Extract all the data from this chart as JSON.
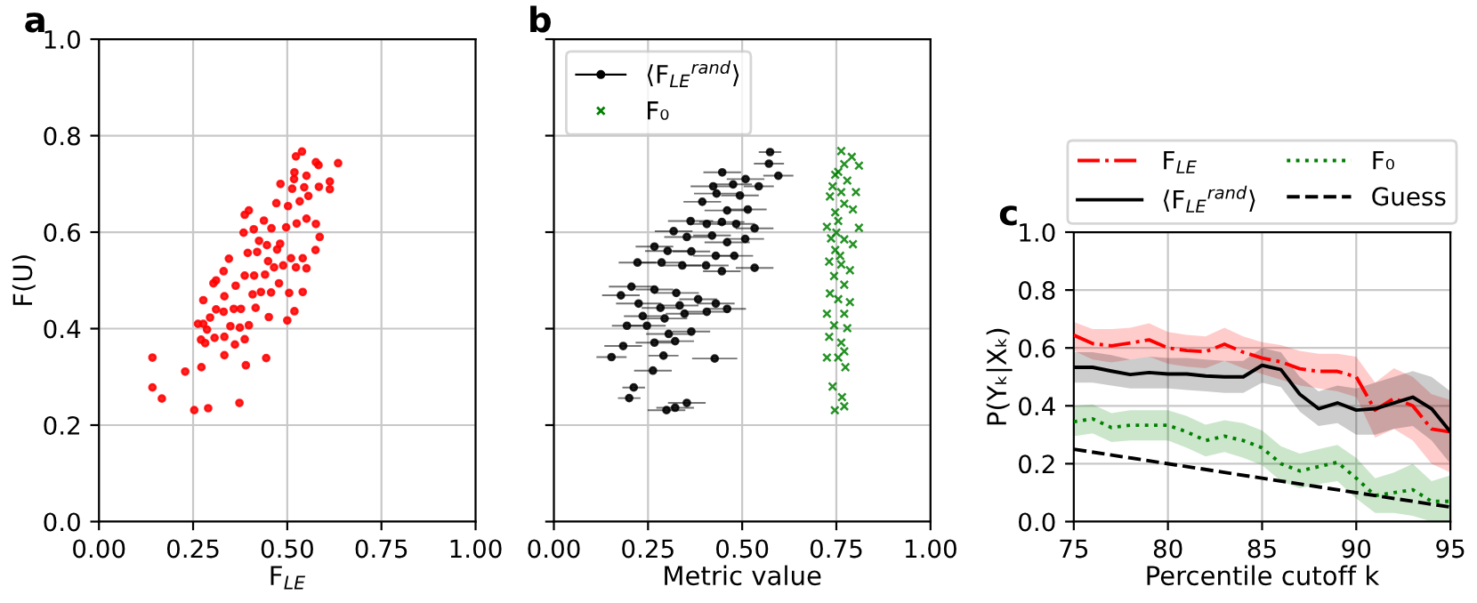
{
  "chart_data": [
    {
      "type": "scatter",
      "title": "a",
      "xlabel": "F$_{LE}$",
      "ylabel": "F(U)",
      "xlim": [
        0,
        1
      ],
      "ylim": [
        0,
        1
      ],
      "xticks": [
        {
          "value": 0,
          "label": "0.00"
        },
        {
          "value": 0.25,
          "label": "0.25"
        },
        {
          "value": 0.5,
          "label": "0.50"
        },
        {
          "value": 0.75,
          "label": "0.75"
        },
        {
          "value": 1,
          "label": "1.00"
        }
      ],
      "yticks": [
        {
          "value": 0,
          "label": "0.0"
        },
        {
          "value": 0.2,
          "label": "0.2"
        },
        {
          "value": 0.4,
          "label": "0.4"
        },
        {
          "value": 0.6,
          "label": "0.6"
        },
        {
          "value": 0.8,
          "label": "0.8"
        },
        {
          "value": 1,
          "label": "1.0"
        }
      ],
      "grid": true,
      "marker": "circle",
      "series": [
        {
          "color": "#ff0000",
          "x": [
            0.142,
            0.142,
            0.167,
            0.253,
            0.29,
            0.373,
            0.229,
            0.272,
            0.39,
            0.444,
            0.333,
            0.271,
            0.282,
            0.307,
            0.361,
            0.387,
            0.333,
            0.287,
            0.263,
            0.277,
            0.349,
            0.374,
            0.398,
            0.295,
            0.311,
            0.331,
            0.358,
            0.377,
            0.416,
            0.451,
            0.5,
            0.519,
            0.277,
            0.333,
            0.363,
            0.304,
            0.311,
            0.331,
            0.345,
            0.408,
            0.43,
            0.457,
            0.478,
            0.505,
            0.541,
            0.387,
            0.412,
            0.441,
            0.465,
            0.489,
            0.523,
            0.551,
            0.395,
            0.42,
            0.446,
            0.473,
            0.51,
            0.541,
            0.575,
            0.586,
            0.384,
            0.411,
            0.438,
            0.458,
            0.497,
            0.525,
            0.551,
            0.576,
            0.387,
            0.398,
            0.471,
            0.502,
            0.533,
            0.556,
            0.584,
            0.613,
            0.613,
            0.482,
            0.513,
            0.545,
            0.518,
            0.551,
            0.519,
            0.576,
            0.583,
            0.635,
            0.523,
            0.539,
            0.425,
            0.481,
            0.449
          ],
          "values": [
            0.34,
            0.278,
            0.255,
            0.231,
            0.235,
            0.246,
            0.311,
            0.32,
            0.324,
            0.339,
            0.345,
            0.377,
            0.37,
            0.381,
            0.367,
            0.378,
            0.383,
            0.398,
            0.41,
            0.41,
            0.405,
            0.402,
            0.407,
            0.423,
            0.44,
            0.435,
            0.441,
            0.441,
            0.443,
            0.424,
            0.417,
            0.436,
            0.459,
            0.467,
            0.489,
            0.494,
            0.5,
            0.519,
            0.545,
            0.471,
            0.476,
            0.475,
            0.494,
            0.474,
            0.476,
            0.51,
            0.51,
            0.512,
            0.527,
            0.531,
            0.527,
            0.525,
            0.557,
            0.559,
            0.573,
            0.564,
            0.546,
            0.546,
            0.563,
            0.59,
            0.599,
            0.606,
            0.624,
            0.608,
            0.61,
            0.618,
            0.628,
            0.617,
            0.636,
            0.645,
            0.66,
            0.654,
            0.664,
            0.675,
            0.694,
            0.705,
            0.689,
            0.7,
            0.69,
            0.693,
            0.71,
            0.717,
            0.724,
            0.745,
            0.739,
            0.743,
            0.757,
            0.767,
            0.582,
            0.576,
            0.54
          ]
        }
      ]
    },
    {
      "type": "scatter",
      "title": "b",
      "xlabel": "Metric value",
      "xlim": [
        0,
        1
      ],
      "ylim": [
        0,
        1
      ],
      "tick_labels": "x",
      "xticks": [
        {
          "value": 0,
          "label": "0.00"
        },
        {
          "value": 0.25,
          "label": "0.25"
        },
        {
          "value": 0.5,
          "label": "0.50"
        },
        {
          "value": 0.75,
          "label": "0.75"
        },
        {
          "value": 1,
          "label": "1.00"
        }
      ],
      "yticks": [
        0,
        0.2,
        0.4,
        0.6,
        0.8,
        1
      ],
      "grid": true,
      "legend": "top left",
      "series": [
        {
          "name": "⟨F$_{LE}$$^{rand}$⟩",
          "color": "#000000",
          "marker": "circle",
          "x": [
            0.574,
            0.571,
            0.596,
            0.447,
            0.509,
            0.476,
            0.423,
            0.544,
            0.394,
            0.432,
            0.494,
            0.46,
            0.515,
            0.363,
            0.406,
            0.446,
            0.484,
            0.533,
            0.318,
            0.353,
            0.42,
            0.46,
            0.508,
            0.267,
            0.302,
            0.365,
            0.43,
            0.479,
            0.533,
            0.222,
            0.286,
            0.341,
            0.404,
            0.446,
            0.206,
            0.267,
            0.325,
            0.383,
            0.43,
            0.178,
            0.225,
            0.283,
            0.334,
            0.406,
            0.46,
            0.236,
            0.294,
            0.347,
            0.194,
            0.247,
            0.305,
            0.365,
            0.267,
            0.322,
            0.184,
            0.153,
            0.291,
            0.427,
            0.263,
            0.212,
            0.2,
            0.353,
            0.322,
            0.299
          ],
          "values": [
            0.766,
            0.742,
            0.717,
            0.724,
            0.71,
            0.699,
            0.695,
            0.695,
            0.663,
            0.68,
            0.676,
            0.645,
            0.647,
            0.623,
            0.617,
            0.621,
            0.617,
            0.608,
            0.602,
            0.59,
            0.593,
            0.579,
            0.586,
            0.57,
            0.561,
            0.56,
            0.551,
            0.551,
            0.526,
            0.537,
            0.537,
            0.531,
            0.531,
            0.519,
            0.487,
            0.481,
            0.474,
            0.461,
            0.452,
            0.469,
            0.452,
            0.443,
            0.448,
            0.435,
            0.441,
            0.426,
            0.421,
            0.431,
            0.406,
            0.406,
            0.389,
            0.394,
            0.371,
            0.374,
            0.364,
            0.341,
            0.344,
            0.338,
            0.313,
            0.278,
            0.256,
            0.246,
            0.236,
            0.231
          ],
          "xerrors": [
            0.03,
            0.04,
            0.04,
            0.05,
            0.05,
            0.05,
            0.06,
            0.04,
            0.05,
            0.06,
            0.05,
            0.06,
            0.05,
            0.06,
            0.05,
            0.06,
            0.05,
            0.05,
            0.05,
            0.06,
            0.05,
            0.06,
            0.05,
            0.05,
            0.06,
            0.05,
            0.06,
            0.05,
            0.05,
            0.05,
            0.06,
            0.05,
            0.06,
            0.05,
            0.06,
            0.05,
            0.06,
            0.05,
            0.05,
            0.05,
            0.06,
            0.05,
            0.05,
            0.06,
            0.05,
            0.05,
            0.06,
            0.05,
            0.04,
            0.05,
            0.06,
            0.05,
            0.05,
            0.05,
            0.05,
            0.04,
            0.04,
            0.06,
            0.05,
            0.03,
            0.03,
            0.05,
            0.05,
            0.05
          ]
        },
        {
          "name": "F₀",
          "color": "#008000",
          "marker": "cross",
          "x": [
            0.763,
            0.791,
            0.81,
            0.771,
            0.755,
            0.779,
            0.74,
            0.763,
            0.802,
            0.733,
            0.771,
            0.747,
            0.794,
            0.725,
            0.755,
            0.81,
            0.736,
            0.771,
            0.747,
            0.794,
            0.731,
            0.763,
            0.786,
            0.744,
            0.771,
            0.733,
            0.755,
            0.786,
            0.725,
            0.771,
            0.744,
            0.779,
            0.731,
            0.763,
            0.771,
            0.725,
            0.755,
            0.774,
            0.74,
            0.765,
            0.771,
            0.746,
            0.75,
            0.747,
            0.76
          ],
          "values": [
            0.768,
            0.756,
            0.738,
            0.741,
            0.725,
            0.707,
            0.695,
            0.683,
            0.683,
            0.674,
            0.659,
            0.641,
            0.647,
            0.611,
            0.623,
            0.609,
            0.587,
            0.585,
            0.563,
            0.575,
            0.539,
            0.533,
            0.521,
            0.509,
            0.491,
            0.473,
            0.461,
            0.455,
            0.431,
            0.431,
            0.407,
            0.401,
            0.383,
            0.371,
            0.353,
            0.34,
            0.34,
            0.32,
            0.28,
            0.258,
            0.239,
            0.231,
            0.599,
            0.719,
            0.551
          ]
        }
      ]
    },
    {
      "type": "line",
      "title": "c",
      "xlabel": "Percentile cutoff k",
      "ylabel": "P(Yₖ|Xₖ)",
      "xlim": [
        75,
        95
      ],
      "ylim": [
        0,
        1
      ],
      "xticks": [
        75,
        80,
        85,
        90,
        95
      ],
      "yticks": [
        {
          "value": 0,
          "label": "0.0"
        },
        {
          "value": 0.2,
          "label": "0.2"
        },
        {
          "value": 0.4,
          "label": "0.4"
        },
        {
          "value": 0.6,
          "label": "0.6"
        },
        {
          "value": 0.8,
          "label": "0.8"
        },
        {
          "value": 1,
          "label": "1.0"
        }
      ],
      "grid": true,
      "legend": "top",
      "x": [
        75,
        76,
        77,
        78,
        79,
        80,
        81,
        82,
        83,
        84,
        85,
        86,
        87,
        88,
        89,
        90,
        91,
        92,
        93,
        94,
        95
      ],
      "series": [
        {
          "name": "F$_{LE}$",
          "color": "#ff0000",
          "line_style": "dashdot",
          "values": [
            0.644,
            0.615,
            0.607,
            0.617,
            0.628,
            0.6,
            0.591,
            0.587,
            0.613,
            0.585,
            0.565,
            0.552,
            0.528,
            0.519,
            0.519,
            0.5,
            0.385,
            0.426,
            0.4,
            0.32,
            0.31
          ],
          "lower": [
            0.59,
            0.56,
            0.55,
            0.56,
            0.57,
            0.545,
            0.535,
            0.53,
            0.555,
            0.53,
            0.51,
            0.49,
            0.47,
            0.46,
            0.45,
            0.43,
            0.29,
            0.32,
            0.28,
            0.2,
            0.17
          ],
          "upper": [
            0.69,
            0.665,
            0.665,
            0.67,
            0.685,
            0.655,
            0.645,
            0.64,
            0.67,
            0.64,
            0.62,
            0.61,
            0.59,
            0.58,
            0.58,
            0.57,
            0.48,
            0.53,
            0.5,
            0.44,
            0.42
          ]
        },
        {
          "name": "⟨F$_{LE}$$^{rand}$⟩",
          "color": "#000000",
          "line_style": "solid",
          "values": [
            0.533,
            0.533,
            0.52,
            0.508,
            0.515,
            0.51,
            0.51,
            0.503,
            0.5,
            0.5,
            0.54,
            0.525,
            0.44,
            0.39,
            0.41,
            0.385,
            0.39,
            0.41,
            0.43,
            0.39,
            0.31
          ],
          "lower": [
            0.48,
            0.48,
            0.47,
            0.46,
            0.46,
            0.46,
            0.455,
            0.45,
            0.445,
            0.445,
            0.48,
            0.465,
            0.38,
            0.33,
            0.34,
            0.3,
            0.3,
            0.32,
            0.33,
            0.28,
            0.2
          ],
          "upper": [
            0.585,
            0.585,
            0.575,
            0.56,
            0.57,
            0.565,
            0.565,
            0.56,
            0.555,
            0.555,
            0.6,
            0.585,
            0.5,
            0.45,
            0.47,
            0.46,
            0.48,
            0.5,
            0.52,
            0.5,
            0.45
          ]
        },
        {
          "name": "F₀",
          "color": "#008000",
          "line_style": "dotted",
          "values": [
            0.345,
            0.355,
            0.325,
            0.333,
            0.333,
            0.333,
            0.31,
            0.28,
            0.295,
            0.28,
            0.255,
            0.2,
            0.175,
            0.19,
            0.205,
            0.15,
            0.09,
            0.1,
            0.11,
            0.07,
            0.07
          ],
          "lower": [
            0.295,
            0.305,
            0.275,
            0.28,
            0.28,
            0.28,
            0.255,
            0.225,
            0.24,
            0.22,
            0.195,
            0.14,
            0.115,
            0.13,
            0.14,
            0.08,
            0.03,
            0.03,
            0.02,
            0.0,
            0.0
          ],
          "upper": [
            0.4,
            0.405,
            0.375,
            0.385,
            0.385,
            0.385,
            0.365,
            0.335,
            0.35,
            0.34,
            0.315,
            0.26,
            0.235,
            0.25,
            0.265,
            0.22,
            0.15,
            0.17,
            0.2,
            0.14,
            0.16
          ]
        },
        {
          "name": "Guess",
          "color": "#000000",
          "line_style": "dashed",
          "x": [
            75,
            95
          ],
          "values": [
            0.25,
            0.05
          ]
        }
      ]
    }
  ]
}
